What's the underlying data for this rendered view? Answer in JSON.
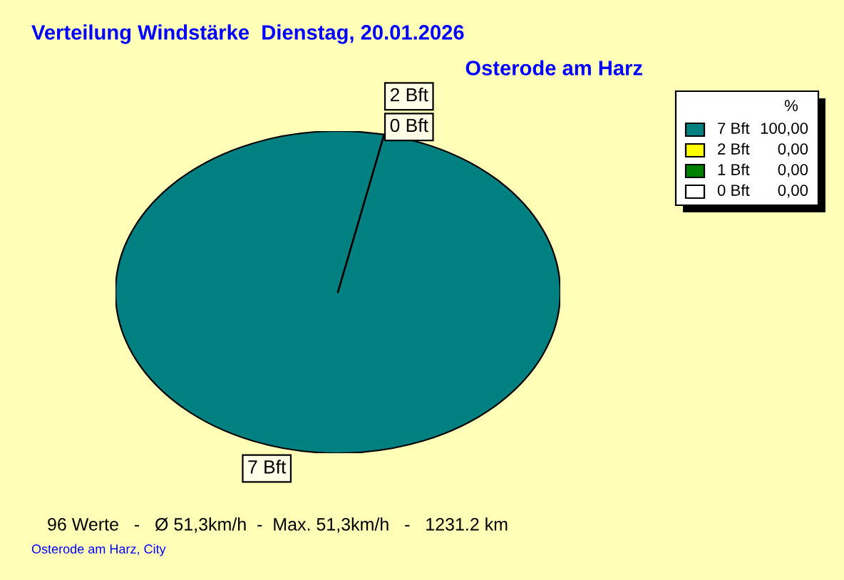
{
  "chart_data": {
    "type": "pie",
    "title": "Verteilung Windstärke  Dienstag, 20.01.2026",
    "subtitle": "Osterode am Harz",
    "categories": [
      "7 Bft",
      "2 Bft",
      "1 Bft",
      "0 Bft"
    ],
    "values": [
      100,
      0,
      0,
      0
    ],
    "colors": [
      "#008080",
      "#ffff00",
      "#008000",
      "#ffffff"
    ],
    "value_labels": [
      "100,00",
      "0,00",
      "0,00",
      "0,00"
    ],
    "legend_title": "%",
    "legend": "top right",
    "annotations": [
      {
        "text": "7 Bft",
        "x": "7 Bft"
      },
      {
        "text": "2 Bft",
        "x": "2 Bft"
      },
      {
        "text": "0 Bft",
        "x": "0 Bft"
      },
      "96 Werte   -   Ø 51,3km/h  -  Max. 51,3km/h   -   1231.2 km",
      "Osterode am Harz, City"
    ]
  }
}
